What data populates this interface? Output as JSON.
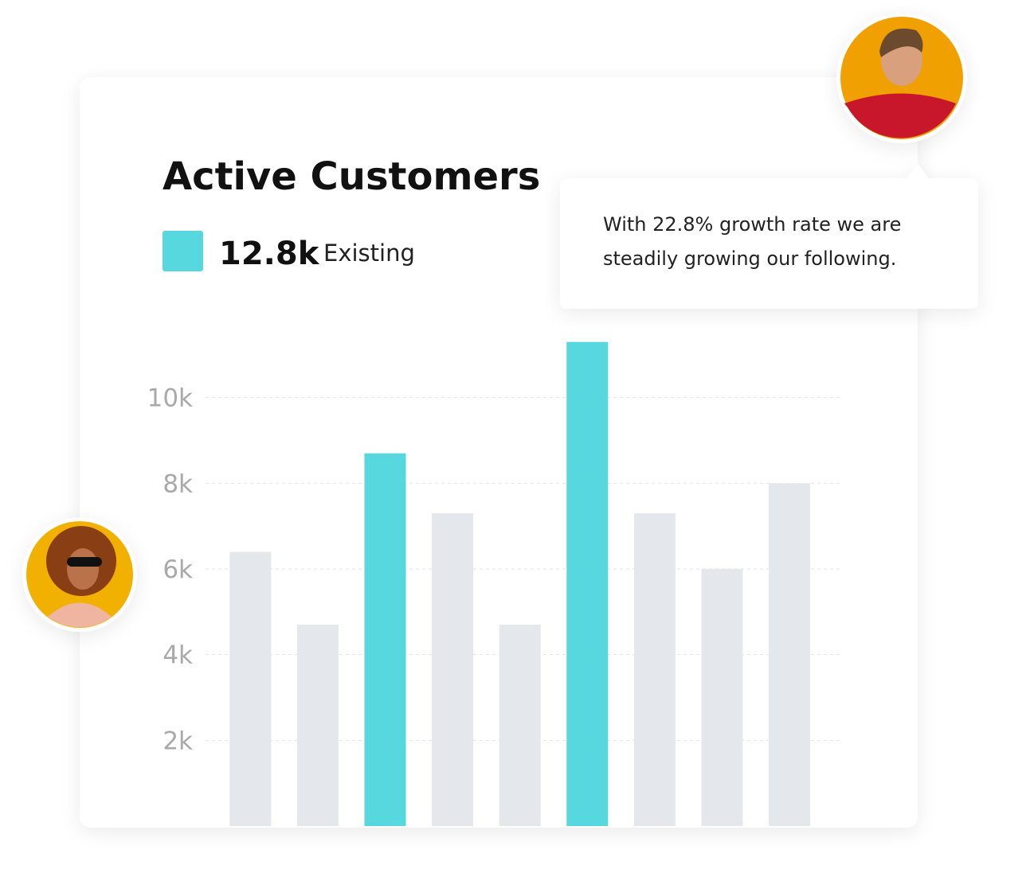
{
  "chart_data": {
    "type": "bar",
    "title": "Active Customers",
    "legend": {
      "value": "12.8k",
      "label": "Existing",
      "color": "#56d8de"
    },
    "callout": [
      "With 22.8% growth rate we are",
      "steadily growing our following."
    ],
    "categories": [
      null,
      null,
      null,
      null,
      null,
      null,
      null,
      null,
      null
    ],
    "values": [
      6.4,
      4.7,
      8.7,
      7.3,
      4.7,
      11.3,
      7.3,
      6.0,
      8.0
    ],
    "colors": [
      "#e4e8ec",
      "#e4e8ec",
      "#56d8de",
      "#e4e8ec",
      "#e4e8ec",
      "#56d8de",
      "#e4e8ec",
      "#e4e8ec",
      "#e4e8ec"
    ],
    "ylim": [
      0,
      12
    ],
    "yticks": [
      {
        "value": 2,
        "label": "2k"
      },
      {
        "value": 4,
        "label": "4k"
      },
      {
        "value": 6,
        "label": "6k"
      },
      {
        "value": 8,
        "label": "8k"
      },
      {
        "value": 10,
        "label": "10k"
      }
    ],
    "grid": true
  }
}
